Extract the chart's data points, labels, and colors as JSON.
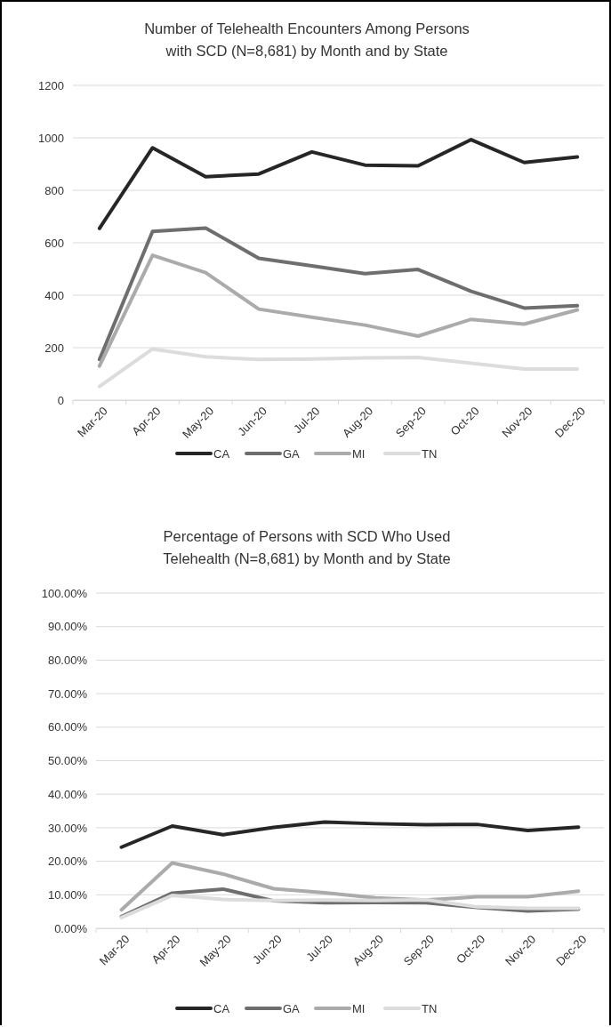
{
  "chart_data": [
    {
      "type": "line",
      "title": "Number of Telehealth Encounters Among Persons\nwith SCD (N=8,681) by Month and by State",
      "categories": [
        "Mar-20",
        "Apr-20",
        "May-20",
        "Jun-20",
        "Jul-20",
        "Aug-20",
        "Sep-20",
        "Oct-20",
        "Nov-20",
        "Dec-20"
      ],
      "series": [
        {
          "name": "CA",
          "color": "#262626",
          "values": [
            655,
            962,
            852,
            862,
            946,
            896,
            893,
            993,
            906,
            927
          ]
        },
        {
          "name": "GA",
          "color": "#6e6e6e",
          "values": [
            155,
            643,
            656,
            541,
            512,
            482,
            498,
            415,
            351,
            360
          ]
        },
        {
          "name": "MI",
          "color": "#ababab",
          "values": [
            130,
            552,
            486,
            347,
            316,
            286,
            244,
            308,
            290,
            344
          ]
        },
        {
          "name": "TN",
          "color": "#dcdcdc",
          "values": [
            52,
            195,
            165,
            155,
            157,
            161,
            163,
            141,
            119,
            119
          ]
        }
      ],
      "ylim": [
        0,
        1200
      ],
      "yticks": [
        0,
        200,
        400,
        600,
        800,
        1000,
        1200
      ],
      "grid": "y",
      "legend": "bottom",
      "marker": "none",
      "line_style": "solid"
    },
    {
      "type": "line",
      "title": "Percentage of Persons with SCD Who Used\nTelehealth (N=8,681) by Month and by State",
      "categories": [
        "Mar-20",
        "Apr-20",
        "May-20",
        "Jun-20",
        "Jul-20",
        "Aug-20",
        "Sep-20",
        "Oct-20",
        "Nov-20",
        "Dec-20"
      ],
      "series": [
        {
          "name": "CA",
          "color": "#262626",
          "values": [
            24.2,
            30.5,
            27.9,
            30.1,
            31.7,
            31.2,
            30.9,
            31.0,
            29.2,
            30.2
          ]
        },
        {
          "name": "GA",
          "color": "#6e6e6e",
          "values": [
            3.5,
            10.5,
            11.7,
            8.2,
            7.6,
            7.7,
            7.6,
            6.2,
            5.2,
            5.7
          ]
        },
        {
          "name": "MI",
          "color": "#ababab",
          "values": [
            5.5,
            19.5,
            16.2,
            11.8,
            10.6,
            9.1,
            8.4,
            9.4,
            9.4,
            11.1
          ]
        },
        {
          "name": "TN",
          "color": "#dcdcdc",
          "values": [
            3.2,
            9.8,
            8.6,
            8.3,
            8.4,
            8.3,
            8.5,
            6.4,
            6.0,
            6.0
          ]
        }
      ],
      "ylim": [
        0,
        100
      ],
      "yticks": [
        {
          "value": 0,
          "label": "0.00%"
        },
        {
          "value": 10,
          "label": "10.00%"
        },
        {
          "value": 20,
          "label": "20.00%"
        },
        {
          "value": 30,
          "label": "30.00%"
        },
        {
          "value": 40,
          "label": "40.00%"
        },
        {
          "value": 50,
          "label": "50.00%"
        },
        {
          "value": 60,
          "label": "60.00%"
        },
        {
          "value": 70,
          "label": "70.00%"
        },
        {
          "value": 80,
          "label": "80.00%"
        },
        {
          "value": 90,
          "label": "90.00%"
        },
        {
          "value": 100,
          "label": "100.00%"
        }
      ],
      "grid": "y",
      "legend": "bottom",
      "marker": "none",
      "line_style": "solid"
    }
  ]
}
